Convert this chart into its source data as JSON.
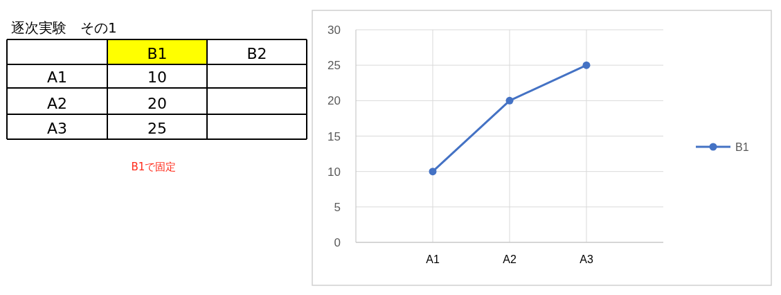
{
  "chart_data": [
    {
      "type": "heatmap",
      "title": "逐次実験　その1",
      "categories": [
        "B1",
        "B2"
      ],
      "y_categories": [
        "A1",
        "A2",
        "A3"
      ],
      "cells": [
        [
          10,
          null
        ],
        [
          20,
          null
        ],
        [
          25,
          null
        ]
      ],
      "data_labels": true,
      "annotations": [
        "B1で固定"
      ]
    },
    {
      "type": "line",
      "categories": [
        "A1",
        "A2",
        "A3"
      ],
      "series": [
        {
          "name": "B1",
          "color": "#4472c4",
          "values": [
            10,
            20,
            25
          ]
        }
      ],
      "ylim": [
        0,
        30
      ],
      "yticks": [
        0,
        5,
        10,
        15,
        20,
        25,
        30
      ],
      "grid": true,
      "legend": "right",
      "marker": "circle"
    }
  ]
}
